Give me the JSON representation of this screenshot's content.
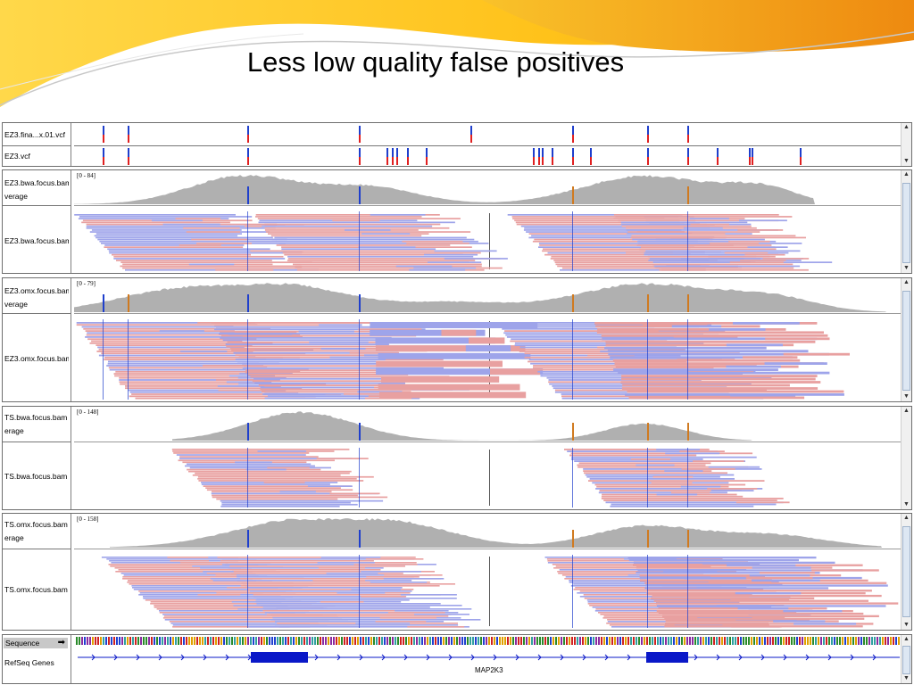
{
  "slide": {
    "title": "Less low quality false positives"
  },
  "tracks": {
    "vcf1": {
      "label": "EZ3.fina...x.01.vcf"
    },
    "vcf2": {
      "label": "EZ3.vcf"
    },
    "p1": {
      "cov_label": "EZ3.bwa.focus.bam verage",
      "range": "[0 - 84]",
      "aln_label": "EZ3.bwa.focus.bam"
    },
    "p2": {
      "cov_label": "EZ3.omx.focus.bam verage",
      "range": "[0 - 79]",
      "aln_label": "EZ3.omx.focus.bam"
    },
    "p3": {
      "cov_label": "TS.bwa.focus.bam erage",
      "range": "[0 - 148]",
      "aln_label": "TS.bwa.focus.bam"
    },
    "p4": {
      "cov_label": "TS.omx.focus.bam erage",
      "range": "[0 - 158]",
      "aln_label": "TS.omx.focus.bam"
    },
    "seq": {
      "label": "Sequence",
      "arrow": "➡",
      "refseq_label": "RefSeq Genes",
      "gene": "MAP2K3"
    }
  },
  "colors": {
    "coverage": "#b0b0b0",
    "read_forward": "#e8a0a0",
    "read_reverse": "#9ea4ea",
    "variant_ref_blue": "#1f3fcc",
    "variant_alt_red": "#e02020",
    "gene_block": "#0a18c8"
  }
}
